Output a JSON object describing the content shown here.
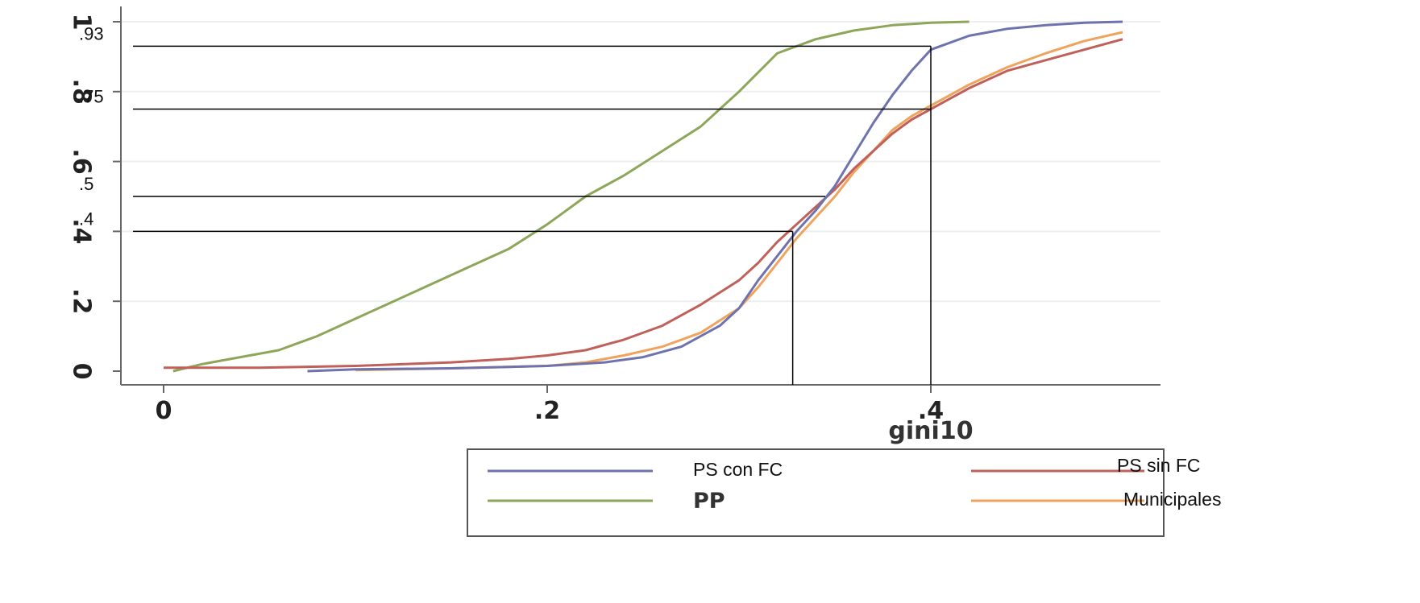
{
  "chart_data": {
    "type": "line",
    "title": "",
    "xlabel": "gini10",
    "ylabel": "",
    "xlim": [
      0,
      0.5
    ],
    "ylim": [
      0,
      1
    ],
    "x_ticks": [
      "0",
      ".2",
      ".4"
    ],
    "x_tick_values": [
      0,
      0.2,
      0.4
    ],
    "y_ticks": [
      "0",
      ".2",
      ".4",
      ".6",
      ".8",
      "1"
    ],
    "y_tick_values": [
      0,
      0.2,
      0.4,
      0.6,
      0.8,
      1
    ],
    "grid": "horizontal",
    "legend_position": "bottom-right",
    "series": [
      {
        "name": "PS con FC",
        "color": "#6e73ad",
        "x": [
          0.075,
          0.1,
          0.15,
          0.2,
          0.23,
          0.25,
          0.27,
          0.29,
          0.3,
          0.31,
          0.32,
          0.33,
          0.34,
          0.35,
          0.36,
          0.37,
          0.38,
          0.39,
          0.4,
          0.42,
          0.44,
          0.46,
          0.48,
          0.5
        ],
        "y": [
          0,
          0.005,
          0.008,
          0.015,
          0.025,
          0.04,
          0.07,
          0.13,
          0.18,
          0.26,
          0.33,
          0.4,
          0.46,
          0.53,
          0.62,
          0.71,
          0.79,
          0.86,
          0.92,
          0.96,
          0.98,
          0.99,
          0.997,
          1
        ]
      },
      {
        "name": "PS sin FC",
        "color": "#c0605a",
        "x": [
          0,
          0.05,
          0.1,
          0.15,
          0.18,
          0.2,
          0.22,
          0.24,
          0.26,
          0.28,
          0.3,
          0.31,
          0.32,
          0.33,
          0.34,
          0.35,
          0.36,
          0.37,
          0.38,
          0.39,
          0.4,
          0.42,
          0.44,
          0.46,
          0.48,
          0.5
        ],
        "y": [
          0.01,
          0.01,
          0.015,
          0.025,
          0.035,
          0.045,
          0.06,
          0.09,
          0.13,
          0.19,
          0.26,
          0.31,
          0.37,
          0.42,
          0.47,
          0.52,
          0.58,
          0.63,
          0.68,
          0.72,
          0.75,
          0.81,
          0.86,
          0.89,
          0.92,
          0.95
        ]
      },
      {
        "name": "PP",
        "color": "#8ea65a",
        "x": [
          0.005,
          0.02,
          0.04,
          0.06,
          0.08,
          0.1,
          0.12,
          0.14,
          0.16,
          0.18,
          0.2,
          0.22,
          0.24,
          0.26,
          0.28,
          0.3,
          0.32,
          0.34,
          0.36,
          0.38,
          0.4,
          0.42
        ],
        "y": [
          0,
          0.02,
          0.04,
          0.06,
          0.1,
          0.15,
          0.2,
          0.25,
          0.3,
          0.35,
          0.42,
          0.5,
          0.56,
          0.63,
          0.7,
          0.8,
          0.91,
          0.95,
          0.975,
          0.99,
          0.997,
          1
        ]
      },
      {
        "name": "Municipales",
        "color": "#f0a35c",
        "x": [
          0.1,
          0.15,
          0.2,
          0.22,
          0.24,
          0.26,
          0.28,
          0.3,
          0.31,
          0.32,
          0.33,
          0.34,
          0.35,
          0.36,
          0.37,
          0.38,
          0.39,
          0.4,
          0.42,
          0.44,
          0.46,
          0.48,
          0.5
        ],
        "y": [
          0.003,
          0.008,
          0.015,
          0.025,
          0.045,
          0.07,
          0.11,
          0.18,
          0.24,
          0.31,
          0.38,
          0.44,
          0.5,
          0.57,
          0.63,
          0.69,
          0.73,
          0.76,
          0.82,
          0.87,
          0.91,
          0.945,
          0.97
        ]
      }
    ],
    "annotations": {
      "horizontal_lines": [
        {
          "label": ".93",
          "y": 0.93,
          "x_end": 0.4
        },
        {
          "label": ".75",
          "y": 0.75,
          "x_end": 0.4
        },
        {
          "label": ".5",
          "y": 0.5,
          "x_end": 0.345
        },
        {
          "label": ".4",
          "y": 0.4,
          "x_end": 0.328
        }
      ],
      "vertical_lines": [
        {
          "x": 0.328,
          "y_top": 0.4
        },
        {
          "x": 0.4,
          "y_top": 0.93
        }
      ]
    }
  },
  "legend": {
    "items": [
      {
        "label": "PS con FC",
        "color": "#6e73ad"
      },
      {
        "label": "PS sin FC",
        "color": "#c0605a"
      },
      {
        "label": "PP",
        "color": "#8ea65a"
      },
      {
        "label": "Municipales",
        "color": "#f0a35c"
      }
    ]
  }
}
